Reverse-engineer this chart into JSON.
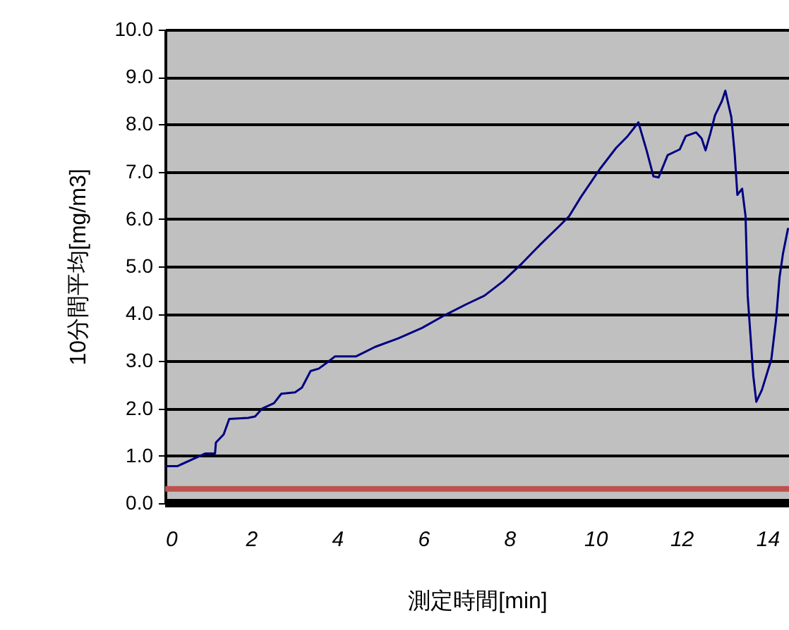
{
  "chart_data": {
    "type": "line",
    "xlabel": "測定時間[min]",
    "ylabel": "10分間平均[mg/m3]",
    "xlim": [
      0,
      14.5
    ],
    "xticks": [
      0,
      2,
      4,
      6,
      8,
      10,
      12,
      14
    ],
    "ylim": [
      0,
      10
    ],
    "yticks": [
      {
        "value": 0,
        "label": "0.0"
      },
      {
        "value": 1,
        "label": "1.0"
      },
      {
        "value": 2,
        "label": "2.0"
      },
      {
        "value": 3,
        "label": "3.0"
      },
      {
        "value": 4,
        "label": "4.0"
      },
      {
        "value": 5,
        "label": "5.0"
      },
      {
        "value": 6,
        "label": "6.0"
      },
      {
        "value": 7,
        "label": "7.0"
      },
      {
        "value": 8,
        "label": "8.0"
      },
      {
        "value": 9,
        "label": "9.0"
      },
      {
        "value": 10,
        "label": "10.0"
      }
    ],
    "grid": "y",
    "ref_lines": [
      {
        "axis": "y",
        "value": 0.3,
        "color": "#c0504d"
      }
    ],
    "series": [
      {
        "color": "#000080",
        "x": [
          0,
          0.28,
          0.94,
          1.16,
          1.18,
          1.36,
          1.49,
          1.93,
          2.09,
          2.26,
          2.53,
          2.7,
          3.02,
          3.18,
          3.38,
          3.57,
          3.78,
          3.95,
          4.44,
          4.88,
          5.42,
          5.97,
          6.52,
          7.0,
          7.42,
          7.86,
          8.3,
          8.73,
          9.17,
          9.39,
          9.66,
          10.1,
          10.48,
          10.75,
          11.0,
          11.19,
          11.35,
          11.47,
          11.68,
          11.96,
          12.1,
          12.34,
          12.47,
          12.56,
          12.67,
          12.78,
          12.94,
          13.02,
          13.16,
          13.24,
          13.3,
          13.41,
          13.49,
          13.54,
          13.67,
          13.74,
          13.87,
          14.09,
          14.2,
          14.28,
          14.36,
          14.48
        ],
        "values": [
          0.78,
          0.78,
          1.05,
          1.05,
          1.28,
          1.45,
          1.78,
          1.8,
          1.83,
          2.0,
          2.11,
          2.31,
          2.34,
          2.44,
          2.79,
          2.84,
          2.98,
          3.1,
          3.1,
          3.3,
          3.48,
          3.7,
          3.98,
          4.2,
          4.38,
          4.69,
          5.07,
          5.47,
          5.86,
          6.06,
          6.46,
          7.05,
          7.5,
          7.75,
          8.04,
          7.45,
          6.9,
          6.88,
          7.35,
          7.47,
          7.75,
          7.83,
          7.7,
          7.45,
          7.8,
          8.19,
          8.49,
          8.71,
          8.15,
          7.35,
          6.51,
          6.64,
          6.06,
          4.38,
          2.69,
          2.14,
          2.39,
          3.04,
          3.88,
          4.77,
          5.27,
          5.81
        ]
      }
    ]
  }
}
